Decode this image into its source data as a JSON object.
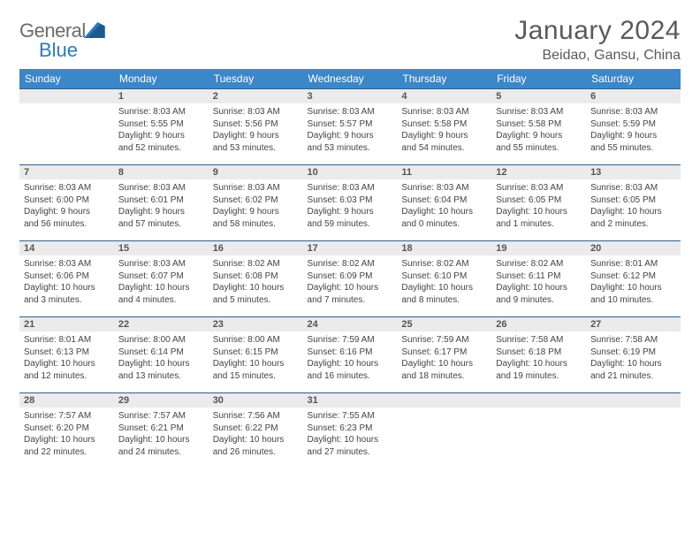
{
  "brand": {
    "word1": "General",
    "word2": "Blue"
  },
  "title": "January 2024",
  "location": "Beidao, Gansu, China",
  "header_bg": "#3b87c8",
  "daynum_bg": "#ebebeb",
  "rule_color": "#2f5f8a",
  "weekdays": [
    "Sunday",
    "Monday",
    "Tuesday",
    "Wednesday",
    "Thursday",
    "Friday",
    "Saturday"
  ],
  "start_offset": 1,
  "days": [
    {
      "n": 1,
      "sunrise": "8:03 AM",
      "sunset": "5:55 PM",
      "day_h": 9,
      "day_m": 52
    },
    {
      "n": 2,
      "sunrise": "8:03 AM",
      "sunset": "5:56 PM",
      "day_h": 9,
      "day_m": 53
    },
    {
      "n": 3,
      "sunrise": "8:03 AM",
      "sunset": "5:57 PM",
      "day_h": 9,
      "day_m": 53
    },
    {
      "n": 4,
      "sunrise": "8:03 AM",
      "sunset": "5:58 PM",
      "day_h": 9,
      "day_m": 54
    },
    {
      "n": 5,
      "sunrise": "8:03 AM",
      "sunset": "5:58 PM",
      "day_h": 9,
      "day_m": 55
    },
    {
      "n": 6,
      "sunrise": "8:03 AM",
      "sunset": "5:59 PM",
      "day_h": 9,
      "day_m": 55
    },
    {
      "n": 7,
      "sunrise": "8:03 AM",
      "sunset": "6:00 PM",
      "day_h": 9,
      "day_m": 56
    },
    {
      "n": 8,
      "sunrise": "8:03 AM",
      "sunset": "6:01 PM",
      "day_h": 9,
      "day_m": 57
    },
    {
      "n": 9,
      "sunrise": "8:03 AM",
      "sunset": "6:02 PM",
      "day_h": 9,
      "day_m": 58
    },
    {
      "n": 10,
      "sunrise": "8:03 AM",
      "sunset": "6:03 PM",
      "day_h": 9,
      "day_m": 59
    },
    {
      "n": 11,
      "sunrise": "8:03 AM",
      "sunset": "6:04 PM",
      "day_h": 10,
      "day_m": 0
    },
    {
      "n": 12,
      "sunrise": "8:03 AM",
      "sunset": "6:05 PM",
      "day_h": 10,
      "day_m": 1
    },
    {
      "n": 13,
      "sunrise": "8:03 AM",
      "sunset": "6:05 PM",
      "day_h": 10,
      "day_m": 2
    },
    {
      "n": 14,
      "sunrise": "8:03 AM",
      "sunset": "6:06 PM",
      "day_h": 10,
      "day_m": 3
    },
    {
      "n": 15,
      "sunrise": "8:03 AM",
      "sunset": "6:07 PM",
      "day_h": 10,
      "day_m": 4
    },
    {
      "n": 16,
      "sunrise": "8:02 AM",
      "sunset": "6:08 PM",
      "day_h": 10,
      "day_m": 5
    },
    {
      "n": 17,
      "sunrise": "8:02 AM",
      "sunset": "6:09 PM",
      "day_h": 10,
      "day_m": 7
    },
    {
      "n": 18,
      "sunrise": "8:02 AM",
      "sunset": "6:10 PM",
      "day_h": 10,
      "day_m": 8
    },
    {
      "n": 19,
      "sunrise": "8:02 AM",
      "sunset": "6:11 PM",
      "day_h": 10,
      "day_m": 9
    },
    {
      "n": 20,
      "sunrise": "8:01 AM",
      "sunset": "6:12 PM",
      "day_h": 10,
      "day_m": 10
    },
    {
      "n": 21,
      "sunrise": "8:01 AM",
      "sunset": "6:13 PM",
      "day_h": 10,
      "day_m": 12
    },
    {
      "n": 22,
      "sunrise": "8:00 AM",
      "sunset": "6:14 PM",
      "day_h": 10,
      "day_m": 13
    },
    {
      "n": 23,
      "sunrise": "8:00 AM",
      "sunset": "6:15 PM",
      "day_h": 10,
      "day_m": 15
    },
    {
      "n": 24,
      "sunrise": "7:59 AM",
      "sunset": "6:16 PM",
      "day_h": 10,
      "day_m": 16
    },
    {
      "n": 25,
      "sunrise": "7:59 AM",
      "sunset": "6:17 PM",
      "day_h": 10,
      "day_m": 18
    },
    {
      "n": 26,
      "sunrise": "7:58 AM",
      "sunset": "6:18 PM",
      "day_h": 10,
      "day_m": 19
    },
    {
      "n": 27,
      "sunrise": "7:58 AM",
      "sunset": "6:19 PM",
      "day_h": 10,
      "day_m": 21
    },
    {
      "n": 28,
      "sunrise": "7:57 AM",
      "sunset": "6:20 PM",
      "day_h": 10,
      "day_m": 22
    },
    {
      "n": 29,
      "sunrise": "7:57 AM",
      "sunset": "6:21 PM",
      "day_h": 10,
      "day_m": 24
    },
    {
      "n": 30,
      "sunrise": "7:56 AM",
      "sunset": "6:22 PM",
      "day_h": 10,
      "day_m": 26
    },
    {
      "n": 31,
      "sunrise": "7:55 AM",
      "sunset": "6:23 PM",
      "day_h": 10,
      "day_m": 27
    }
  ]
}
